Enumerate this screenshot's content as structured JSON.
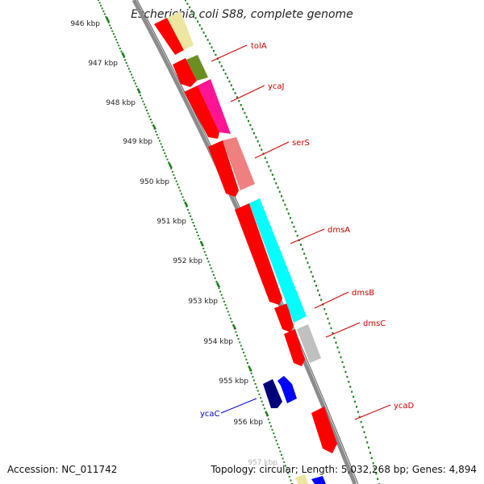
{
  "title": "Escherichia coli S88, complete genome",
  "footer": {
    "accession": "Accession: NC_011742",
    "summary": "Topology: circular; Length: 5,032,268 bp; Genes: 4,894"
  },
  "ticks": [
    "946 kbp",
    "947 kbp",
    "948 kbp",
    "949 kbp",
    "950 kbp",
    "951 kbp",
    "952 kbp",
    "953 kbp",
    "954 kbp",
    "955 kbp",
    "956 kbp",
    "957 kbp"
  ],
  "gene_labels": [
    {
      "name": "tolA",
      "color": "#cc0000"
    },
    {
      "name": "ycaJ",
      "color": "#cc0000"
    },
    {
      "name": "serS",
      "color": "#cc0000"
    },
    {
      "name": "dmsA",
      "color": "#cc0000"
    },
    {
      "name": "dmsB",
      "color": "#cc0000"
    },
    {
      "name": "dmsC",
      "color": "#cc0000"
    },
    {
      "name": "ycaD",
      "color": "#cc0000"
    },
    {
      "name": "ycaC",
      "color": "#0000cc"
    }
  ],
  "colors": {
    "backbone": "#8c8c8c",
    "tick_green": "#1e7d1e",
    "gene_red": "#ff0000",
    "gene_navy": "#00007a",
    "gene_blue": "#0000ff",
    "khaki": "#ece6a0",
    "olive": "#6b8e23",
    "magenta": "#ff1493",
    "salmon": "#f08080",
    "cyan": "#00ffff",
    "silver": "#c0c0c0"
  }
}
